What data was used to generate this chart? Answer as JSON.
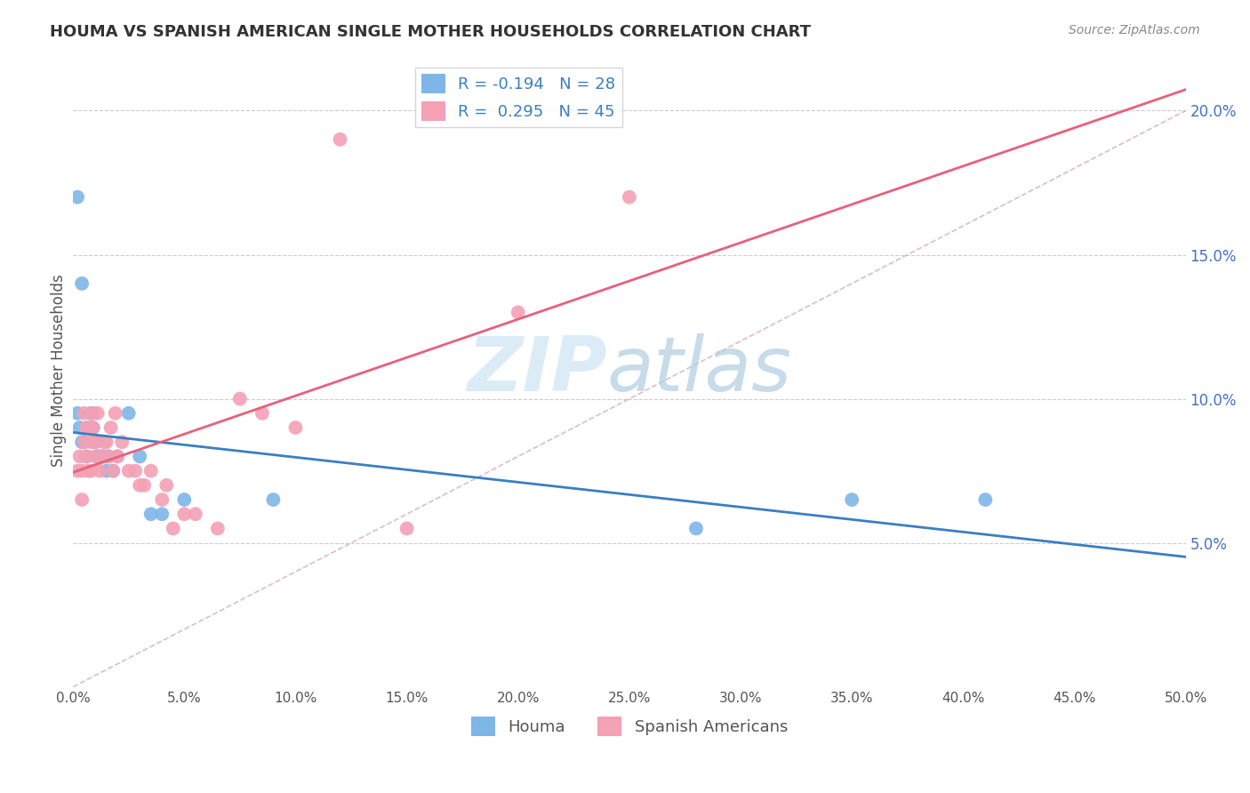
{
  "title": "HOUMA VS SPANISH AMERICAN SINGLE MOTHER HOUSEHOLDS CORRELATION CHART",
  "source": "Source: ZipAtlas.com",
  "ylabel": "Single Mother Households",
  "xlim": [
    0.0,
    0.5
  ],
  "ylim": [
    0.0,
    0.22
  ],
  "houma_color": "#7eb6e8",
  "spanish_color": "#f4a0b5",
  "houma_line_color": "#3a7fc1",
  "spanish_line_color": "#e8607a",
  "diag_line_color": "#d0a0b0",
  "legend_houma_r": "-0.194",
  "legend_houma_n": "28",
  "legend_spanish_r": "0.295",
  "legend_spanish_n": "45",
  "houma_x": [
    0.002,
    0.003,
    0.004,
    0.005,
    0.006,
    0.007,
    0.008,
    0.009,
    0.01,
    0.011,
    0.012,
    0.013,
    0.014,
    0.015,
    0.016,
    0.018,
    0.02,
    0.025,
    0.03,
    0.035,
    0.04,
    0.05,
    0.09,
    0.28,
    0.35,
    0.41,
    0.002,
    0.004
  ],
  "houma_y": [
    0.095,
    0.09,
    0.085,
    0.085,
    0.08,
    0.09,
    0.095,
    0.09,
    0.085,
    0.08,
    0.08,
    0.08,
    0.08,
    0.075,
    0.08,
    0.075,
    0.08,
    0.095,
    0.08,
    0.06,
    0.06,
    0.065,
    0.065,
    0.055,
    0.065,
    0.065,
    0.17,
    0.14
  ],
  "spanish_x": [
    0.002,
    0.003,
    0.004,
    0.004,
    0.005,
    0.005,
    0.006,
    0.006,
    0.007,
    0.007,
    0.008,
    0.008,
    0.009,
    0.009,
    0.01,
    0.01,
    0.011,
    0.012,
    0.013,
    0.014,
    0.015,
    0.016,
    0.017,
    0.018,
    0.019,
    0.02,
    0.022,
    0.025,
    0.028,
    0.03,
    0.032,
    0.035,
    0.04,
    0.042,
    0.045,
    0.05,
    0.055,
    0.065,
    0.075,
    0.085,
    0.1,
    0.12,
    0.15,
    0.2,
    0.25
  ],
  "spanish_y": [
    0.075,
    0.08,
    0.065,
    0.075,
    0.085,
    0.095,
    0.09,
    0.08,
    0.09,
    0.075,
    0.075,
    0.085,
    0.09,
    0.095,
    0.08,
    0.085,
    0.095,
    0.075,
    0.08,
    0.085,
    0.085,
    0.08,
    0.09,
    0.075,
    0.095,
    0.08,
    0.085,
    0.075,
    0.075,
    0.07,
    0.07,
    0.075,
    0.065,
    0.07,
    0.055,
    0.06,
    0.06,
    0.055,
    0.1,
    0.095,
    0.09,
    0.19,
    0.055,
    0.13,
    0.17
  ]
}
